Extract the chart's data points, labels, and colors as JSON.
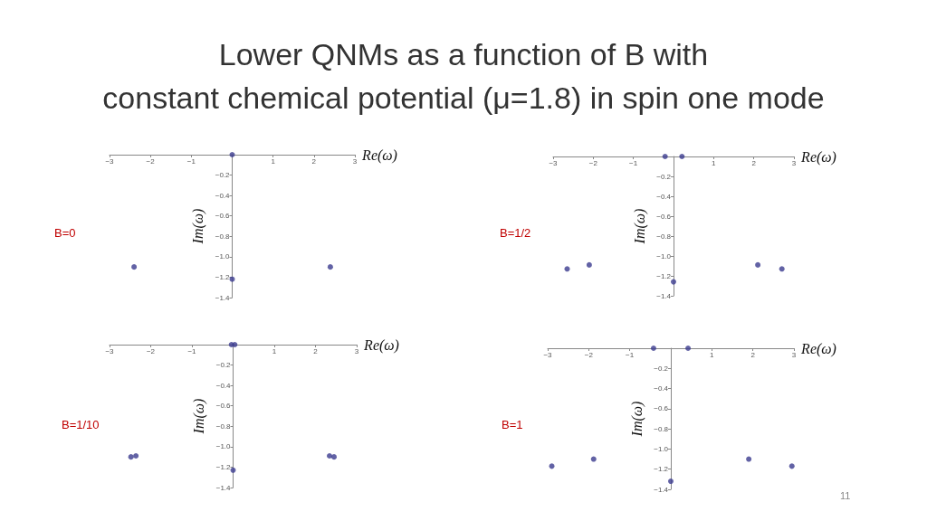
{
  "chart_data": [
    {
      "type": "scatter",
      "title": "Lower QNMs as a function of B with\nconstant chemical potential (μ=1.8) in spin one mode",
      "subtitle": "B=0",
      "xlabel": "Re(ω)",
      "ylabel": "Im(ω)",
      "x": [
        0,
        -2.4,
        2.4,
        0
      ],
      "values": [
        0,
        -1.1,
        -1.1,
        -1.22
      ],
      "color": "#3b3b8f",
      "marker": "circle",
      "xlim": [
        -3,
        3
      ],
      "xticks": [
        -3,
        -2,
        -1,
        1,
        2,
        3
      ],
      "ylim": [
        -1.4,
        0
      ],
      "yticks": [
        {
          "value": -1.4,
          "label": "−1.4"
        },
        {
          "value": -1.2,
          "label": "−1.2"
        },
        {
          "value": -1.0,
          "label": "−1.0"
        },
        {
          "value": -0.8,
          "label": "−0.8"
        },
        {
          "value": -0.6,
          "label": "−0.6"
        },
        {
          "value": -0.4,
          "label": "−0.4"
        },
        {
          "value": -0.2,
          "label": "−0.2"
        }
      ]
    },
    {
      "type": "scatter",
      "subtitle": "B=1/2",
      "xlabel": "Re(ω)",
      "ylabel": "Im(ω)",
      "x": [
        -0.21,
        0.21,
        -2.65,
        -2.1,
        2.1,
        2.7,
        0
      ],
      "values": [
        0,
        0,
        -1.13,
        -1.09,
        -1.09,
        -1.13,
        -1.26
      ],
      "color": "#3b3b8f",
      "marker": "circle",
      "xlim": [
        -3,
        3
      ],
      "xticks": [
        -3,
        -2,
        -1,
        1,
        2,
        3
      ],
      "ylim": [
        -1.4,
        0
      ],
      "yticks": [
        {
          "value": -1.4,
          "label": "−1.4"
        },
        {
          "value": -1.2,
          "label": "−1.2"
        },
        {
          "value": -1.0,
          "label": "−1.0"
        },
        {
          "value": -0.8,
          "label": "−0.8"
        },
        {
          "value": -0.6,
          "label": "−0.6"
        },
        {
          "value": -0.4,
          "label": "−0.4"
        },
        {
          "value": -0.2,
          "label": "−0.2"
        }
      ]
    },
    {
      "type": "scatter",
      "subtitle": "B=1/10",
      "xlabel": "Re(ω)",
      "ylabel": "Im(ω)",
      "x": [
        -0.04,
        0.04,
        -2.48,
        -2.36,
        2.34,
        2.45,
        0
      ],
      "values": [
        0,
        0,
        -1.1,
        -1.09,
        -1.09,
        -1.1,
        -1.23
      ],
      "color": "#3b3b8f",
      "marker": "circle",
      "xlim": [
        -3,
        3
      ],
      "xticks": [
        -3,
        -2,
        -1,
        1,
        2,
        3
      ],
      "ylim": [
        -1.4,
        0
      ],
      "yticks": [
        {
          "value": -1.4,
          "label": "−1.4"
        },
        {
          "value": -1.2,
          "label": "−1.2"
        },
        {
          "value": -1.0,
          "label": "−1.0"
        },
        {
          "value": -0.8,
          "label": "−0.8"
        },
        {
          "value": -0.6,
          "label": "−0.6"
        },
        {
          "value": -0.4,
          "label": "−0.4"
        },
        {
          "value": -0.2,
          "label": "−0.2"
        }
      ]
    },
    {
      "type": "scatter",
      "subtitle": "B=1",
      "xlabel": "Re(ω)",
      "ylabel": "Im(ω)",
      "annotations": [
        "11"
      ],
      "x": [
        -0.42,
        0.42,
        -2.9,
        -1.88,
        1.9,
        2.95,
        0
      ],
      "values": [
        0,
        0,
        -1.17,
        -1.1,
        -1.1,
        -1.17,
        -1.32
      ],
      "color": "#3b3b8f",
      "marker": "circle",
      "xlim": [
        -3,
        3
      ],
      "xticks": [
        -3,
        -2,
        -1,
        1,
        2,
        3
      ],
      "ylim": [
        -1.4,
        0
      ],
      "yticks": [
        {
          "value": -1.4,
          "label": "−1.4"
        },
        {
          "value": -1.2,
          "label": "−1.2"
        },
        {
          "value": -1.0,
          "label": "−1.0"
        },
        {
          "value": -0.8,
          "label": "−0.8"
        },
        {
          "value": -0.6,
          "label": "−0.6"
        },
        {
          "value": -0.4,
          "label": "−0.4"
        },
        {
          "value": -0.2,
          "label": "−0.2"
        }
      ]
    }
  ]
}
